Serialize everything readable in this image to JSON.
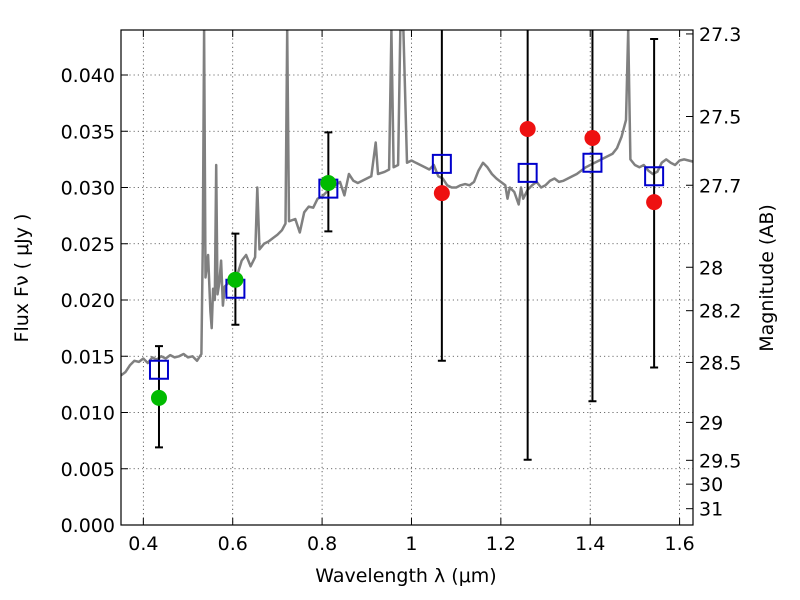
{
  "chart_data": {
    "type": "scatter",
    "xlabel": "Wavelength  λ (μm)",
    "ylabel": "Flux  Fν  ( μJy )",
    "y2label": "Magnitude (AB)",
    "xlim": [
      0.35,
      1.63
    ],
    "ylim": [
      0.0,
      0.044
    ],
    "grid": true,
    "xticks": [
      0.4,
      0.6,
      0.8,
      1.0,
      1.2,
      1.4,
      1.6
    ],
    "xtick_labels": [
      "0.4",
      "0.6",
      "0.8",
      "1",
      "1.2",
      "1.4",
      "1.6"
    ],
    "yticks": [
      0.0,
      0.005,
      0.01,
      0.015,
      0.02,
      0.025,
      0.03,
      0.035,
      0.04
    ],
    "ytick_labels": [
      "0.000",
      "0.005",
      "0.010",
      "0.015",
      "0.020",
      "0.025",
      "0.030",
      "0.035",
      "0.040"
    ],
    "y2ticks": [
      {
        "label": "27.3",
        "flux": 0.04365
      },
      {
        "label": "27.5",
        "flux": 0.03631
      },
      {
        "label": "27.7",
        "flux": 0.0302
      },
      {
        "label": "28",
        "flux": 0.02291
      },
      {
        "label": "28.2",
        "flux": 0.01905
      },
      {
        "label": "28.5",
        "flux": 0.01445
      },
      {
        "label": "29",
        "flux": 0.00912
      },
      {
        "label": "29.5",
        "flux": 0.00575
      },
      {
        "label": "30",
        "flux": 0.00363
      },
      {
        "label": "31",
        "flux": 0.00145
      }
    ],
    "colors": {
      "spectrum": "#808080",
      "model": "#0000cc",
      "detection": "#00bb00",
      "upper": "#ee1111",
      "errorbar": "#000000"
    },
    "spectrum": {
      "name": "",
      "points": [
        [
          0.35,
          0.0133
        ],
        [
          0.36,
          0.0136
        ],
        [
          0.37,
          0.0142
        ],
        [
          0.38,
          0.0146
        ],
        [
          0.39,
          0.0145
        ],
        [
          0.4,
          0.0148
        ],
        [
          0.41,
          0.0144
        ],
        [
          0.42,
          0.0149
        ],
        [
          0.43,
          0.0147
        ],
        [
          0.44,
          0.015
        ],
        [
          0.45,
          0.0148
        ],
        [
          0.46,
          0.0151
        ],
        [
          0.47,
          0.0149
        ],
        [
          0.48,
          0.015
        ],
        [
          0.49,
          0.0152
        ],
        [
          0.5,
          0.0149
        ],
        [
          0.51,
          0.015
        ],
        [
          0.52,
          0.0146
        ],
        [
          0.53,
          0.0152
        ],
        [
          0.533,
          0.025
        ],
        [
          0.536,
          0.044
        ],
        [
          0.539,
          0.022
        ],
        [
          0.545,
          0.024
        ],
        [
          0.55,
          0.019
        ],
        [
          0.553,
          0.0175
        ],
        [
          0.556,
          0.021
        ],
        [
          0.56,
          0.02
        ],
        [
          0.563,
          0.032
        ],
        [
          0.566,
          0.0205
        ],
        [
          0.57,
          0.0215
        ],
        [
          0.574,
          0.0235
        ],
        [
          0.578,
          0.0195
        ],
        [
          0.582,
          0.0212
        ],
        [
          0.59,
          0.0215
        ],
        [
          0.6,
          0.0218
        ],
        [
          0.61,
          0.0222
        ],
        [
          0.62,
          0.0235
        ],
        [
          0.63,
          0.024
        ],
        [
          0.64,
          0.023
        ],
        [
          0.65,
          0.0238
        ],
        [
          0.655,
          0.03
        ],
        [
          0.66,
          0.0245
        ],
        [
          0.67,
          0.025
        ],
        [
          0.68,
          0.0252
        ],
        [
          0.69,
          0.0255
        ],
        [
          0.7,
          0.0258
        ],
        [
          0.71,
          0.0262
        ],
        [
          0.718,
          0.0268
        ],
        [
          0.722,
          0.044
        ],
        [
          0.726,
          0.027
        ],
        [
          0.74,
          0.0272
        ],
        [
          0.75,
          0.026
        ],
        [
          0.76,
          0.0278
        ],
        [
          0.77,
          0.0283
        ],
        [
          0.78,
          0.0282
        ],
        [
          0.79,
          0.029
        ],
        [
          0.8,
          0.0292
        ],
        [
          0.81,
          0.0296
        ],
        [
          0.82,
          0.03
        ],
        [
          0.83,
          0.0302
        ],
        [
          0.84,
          0.0305
        ],
        [
          0.85,
          0.0293
        ],
        [
          0.86,
          0.0312
        ],
        [
          0.87,
          0.0306
        ],
        [
          0.88,
          0.0304
        ],
        [
          0.89,
          0.0306
        ],
        [
          0.9,
          0.0308
        ],
        [
          0.91,
          0.031
        ],
        [
          0.92,
          0.034
        ],
        [
          0.925,
          0.0312
        ],
        [
          0.94,
          0.0314
        ],
        [
          0.95,
          0.0316
        ],
        [
          0.955,
          0.044
        ],
        [
          0.96,
          0.0318
        ],
        [
          0.97,
          0.032
        ],
        [
          0.975,
          0.044
        ],
        [
          0.982,
          0.044
        ],
        [
          0.99,
          0.0322
        ],
        [
          1.0,
          0.0324
        ],
        [
          1.01,
          0.0322
        ],
        [
          1.02,
          0.032
        ],
        [
          1.03,
          0.0318
        ],
        [
          1.04,
          0.0316
        ],
        [
          1.05,
          0.032
        ],
        [
          1.06,
          0.031
        ],
        [
          1.07,
          0.0308
        ],
        [
          1.08,
          0.0302
        ],
        [
          1.09,
          0.03
        ],
        [
          1.1,
          0.03
        ],
        [
          1.11,
          0.0302
        ],
        [
          1.12,
          0.0303
        ],
        [
          1.13,
          0.0302
        ],
        [
          1.14,
          0.0305
        ],
        [
          1.15,
          0.0315
        ],
        [
          1.16,
          0.0322
        ],
        [
          1.17,
          0.0318
        ],
        [
          1.18,
          0.0312
        ],
        [
          1.19,
          0.0308
        ],
        [
          1.2,
          0.0305
        ],
        [
          1.21,
          0.0302
        ],
        [
          1.215,
          0.029
        ],
        [
          1.22,
          0.03
        ],
        [
          1.23,
          0.0296
        ],
        [
          1.24,
          0.0285
        ],
        [
          1.245,
          0.03
        ],
        [
          1.25,
          0.029
        ],
        [
          1.26,
          0.0298
        ],
        [
          1.27,
          0.0302
        ],
        [
          1.28,
          0.0305
        ],
        [
          1.29,
          0.03
        ],
        [
          1.3,
          0.0302
        ],
        [
          1.31,
          0.0306
        ],
        [
          1.32,
          0.0308
        ],
        [
          1.33,
          0.0305
        ],
        [
          1.34,
          0.0306
        ],
        [
          1.35,
          0.0308
        ],
        [
          1.36,
          0.031
        ],
        [
          1.37,
          0.0312
        ],
        [
          1.38,
          0.0315
        ],
        [
          1.39,
          0.0318
        ],
        [
          1.4,
          0.032
        ],
        [
          1.41,
          0.0322
        ],
        [
          1.42,
          0.0324
        ],
        [
          1.43,
          0.0326
        ],
        [
          1.44,
          0.0328
        ],
        [
          1.45,
          0.033
        ],
        [
          1.46,
          0.0335
        ],
        [
          1.47,
          0.0345
        ],
        [
          1.48,
          0.036
        ],
        [
          1.485,
          0.044
        ],
        [
          1.49,
          0.0325
        ],
        [
          1.5,
          0.032
        ],
        [
          1.51,
          0.0318
        ],
        [
          1.52,
          0.032
        ],
        [
          1.53,
          0.0315
        ],
        [
          1.54,
          0.0312
        ],
        [
          1.55,
          0.0314
        ],
        [
          1.56,
          0.0322
        ],
        [
          1.57,
          0.0325
        ],
        [
          1.58,
          0.0322
        ],
        [
          1.59,
          0.032
        ],
        [
          1.6,
          0.0324
        ],
        [
          1.61,
          0.0325
        ],
        [
          1.63,
          0.0323
        ]
      ]
    },
    "model_points": {
      "name": "",
      "points": [
        {
          "x": 0.435,
          "y": 0.0138
        },
        {
          "x": 0.606,
          "y": 0.021
        },
        {
          "x": 0.814,
          "y": 0.0299
        },
        {
          "x": 1.068,
          "y": 0.0321
        },
        {
          "x": 1.26,
          "y": 0.0313
        },
        {
          "x": 1.405,
          "y": 0.0322
        },
        {
          "x": 1.543,
          "y": 0.031
        }
      ]
    },
    "detections": {
      "name": "",
      "points": [
        {
          "x": 0.435,
          "y": 0.0113,
          "ylo": 0.0069,
          "yhi": 0.0159
        },
        {
          "x": 0.606,
          "y": 0.0218,
          "ylo": 0.0178,
          "yhi": 0.0259
        },
        {
          "x": 0.814,
          "y": 0.0304,
          "ylo": 0.0261,
          "yhi": 0.0349
        }
      ]
    },
    "upper_limits": {
      "name": "",
      "points": [
        {
          "x": 1.068,
          "y": 0.0295,
          "ylo": 0.0146,
          "yhi": 0.044
        },
        {
          "x": 1.26,
          "y": 0.0352,
          "ylo": 0.0058,
          "yhi": 0.044
        },
        {
          "x": 1.405,
          "y": 0.0344,
          "ylo": 0.011,
          "yhi": 0.044
        },
        {
          "x": 1.543,
          "y": 0.0287,
          "ylo": 0.014,
          "yhi": 0.0432
        }
      ]
    }
  }
}
